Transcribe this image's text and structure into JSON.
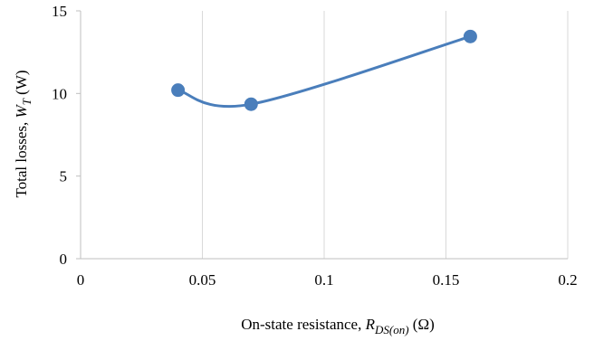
{
  "chart_data": {
    "type": "scatter",
    "series": [
      {
        "x": [
          0.04,
          0.07,
          0.16
        ],
        "y": [
          10.2,
          9.35,
          13.45
        ],
        "color": "#4a7ebb",
        "line": "smooth",
        "marker": "circle"
      }
    ],
    "title": "",
    "xlabel": {
      "text": "On-state resistance, ",
      "symbol": "R",
      "subscript": "DS(on)",
      "unit": " (Ω)"
    },
    "ylabel": {
      "text": "Total losses, ",
      "symbol": "W",
      "subscript": "T",
      "unit": " (W)"
    },
    "xlim": [
      0,
      0.2
    ],
    "ylim": [
      0,
      15
    ],
    "xticks": [
      "0",
      "0.05",
      "0.1",
      "0.15",
      "0.2"
    ],
    "yticks": [
      "0",
      "5",
      "10",
      "15"
    ],
    "grid": "vertical",
    "legend": "none",
    "colors": {
      "series": "#4a7ebb",
      "grid": "#d9d9d9",
      "axis": "#bfbfbf"
    }
  }
}
